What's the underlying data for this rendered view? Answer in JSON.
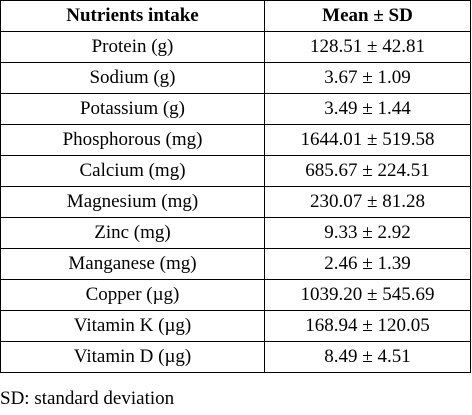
{
  "table": {
    "headers": [
      "Nutrients intake",
      "Mean ± SD"
    ],
    "rows": [
      {
        "nutrient": "Protein (g)",
        "value": "128.51 ± 42.81"
      },
      {
        "nutrient": "Sodium (g)",
        "value": "3.67 ± 1.09"
      },
      {
        "nutrient": "Potassium (g)",
        "value": "3.49 ± 1.44"
      },
      {
        "nutrient": "Phosphorous (mg)",
        "value": "1644.01 ± 519.58"
      },
      {
        "nutrient": "Calcium (mg)",
        "value": "685.67 ± 224.51"
      },
      {
        "nutrient": "Magnesium (mg)",
        "value": "230.07 ± 81.28"
      },
      {
        "nutrient": "Zinc (mg)",
        "value": "9.33 ± 2.92"
      },
      {
        "nutrient": "Manganese (mg)",
        "value": "2.46 ± 1.39"
      },
      {
        "nutrient": "Copper (µg)",
        "value": "1039.20 ± 545.69"
      },
      {
        "nutrient": "Vitamin K (µg)",
        "value": "168.94 ± 120.05"
      },
      {
        "nutrient": "Vitamin D (µg)",
        "value": "8.49 ± 4.51"
      }
    ]
  },
  "footnote": "SD: standard deviation"
}
